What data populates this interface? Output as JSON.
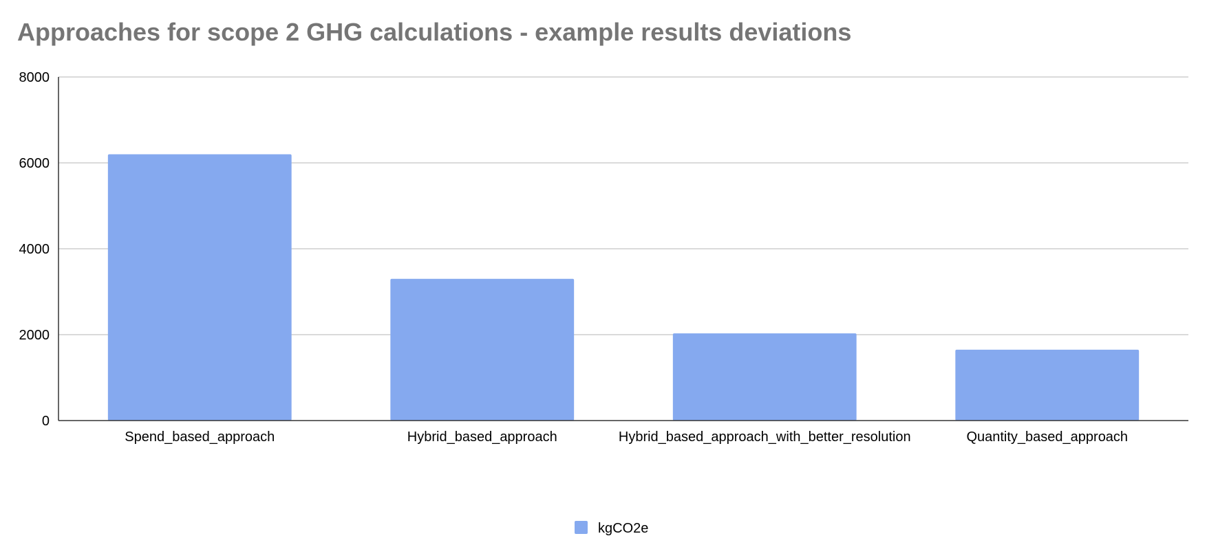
{
  "chart_data": {
    "type": "bar",
    "title": "Approaches for scope 2 GHG calculations - example results deviations",
    "xlabel": "",
    "ylabel": "",
    "categories": [
      "Spend_based_approach",
      "Hybrid_based_approach",
      "Hybrid_based_approach_with_better_resolution",
      "Quantity_based_approach"
    ],
    "series": [
      {
        "name": "kgCO2e",
        "color": "#85a9ef",
        "values": [
          6200,
          3300,
          2030,
          1650
        ]
      }
    ],
    "ylim": [
      0,
      8000
    ],
    "yticks": [
      0,
      2000,
      4000,
      6000,
      8000
    ],
    "grid": true,
    "legend_position": "bottom"
  }
}
